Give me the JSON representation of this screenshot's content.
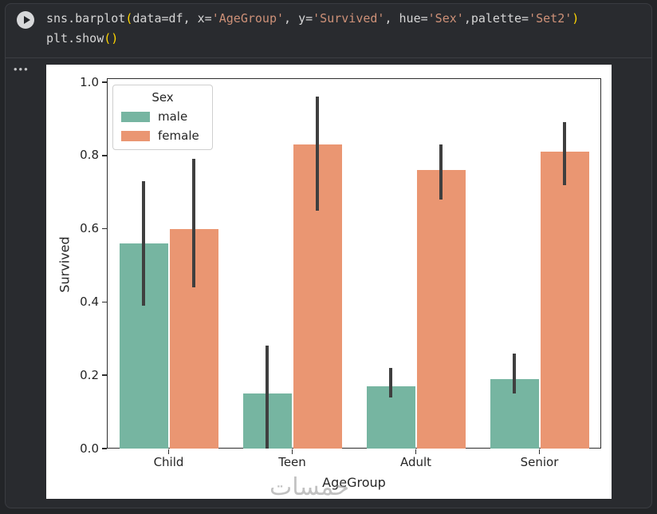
{
  "code_cell": {
    "run_button": "run-cell",
    "lines": [
      {
        "tokens": [
          {
            "text": "sns.barplot",
            "type": "plain"
          },
          {
            "text": "(",
            "type": "bracket"
          },
          {
            "text": "data=df, x=",
            "type": "plain"
          },
          {
            "text": "'AgeGroup'",
            "type": "string"
          },
          {
            "text": ", y=",
            "type": "plain"
          },
          {
            "text": "'Survived'",
            "type": "string"
          },
          {
            "text": ", hue=",
            "type": "plain"
          },
          {
            "text": "'Sex'",
            "type": "string"
          },
          {
            "text": ",palette=",
            "type": "plain"
          },
          {
            "text": "'Set2'",
            "type": "string"
          },
          {
            "text": ")",
            "type": "bracket"
          }
        ]
      },
      {
        "tokens": [
          {
            "text": "plt.show",
            "type": "plain"
          },
          {
            "text": "()",
            "type": "bracket"
          }
        ]
      }
    ]
  },
  "output": {
    "menu_label": "•••"
  },
  "chart_data": {
    "type": "bar",
    "title": "",
    "xlabel": "AgeGroup",
    "ylabel": "Survived",
    "categories": [
      "Child",
      "Teen",
      "Adult",
      "Senior"
    ],
    "series": [
      {
        "name": "male",
        "color": "#76b5a1",
        "values": [
          0.56,
          0.15,
          0.17,
          0.19
        ],
        "ci": [
          [
            0.39,
            0.73
          ],
          [
            0.0,
            0.28
          ],
          [
            0.14,
            0.22
          ],
          [
            0.15,
            0.26
          ]
        ]
      },
      {
        "name": "female",
        "color": "#ea9672",
        "values": [
          0.6,
          0.83,
          0.76,
          0.81
        ],
        "ci": [
          [
            0.44,
            0.79
          ],
          [
            0.65,
            0.96
          ],
          [
            0.68,
            0.83
          ],
          [
            0.72,
            0.89
          ]
        ]
      }
    ],
    "legend": {
      "title": "Sex",
      "position": "upper left"
    },
    "ylim": [
      0,
      1.0
    ],
    "yticks": [
      0,
      0.2,
      0.4,
      0.6,
      0.8,
      1.0
    ],
    "ytick_labels": [
      "0.0",
      "0.2",
      "0.4",
      "0.6",
      "0.8",
      "1.0"
    ],
    "grid": false,
    "error_bar_color": "#3f3f3f",
    "watermark": "خمسات"
  }
}
